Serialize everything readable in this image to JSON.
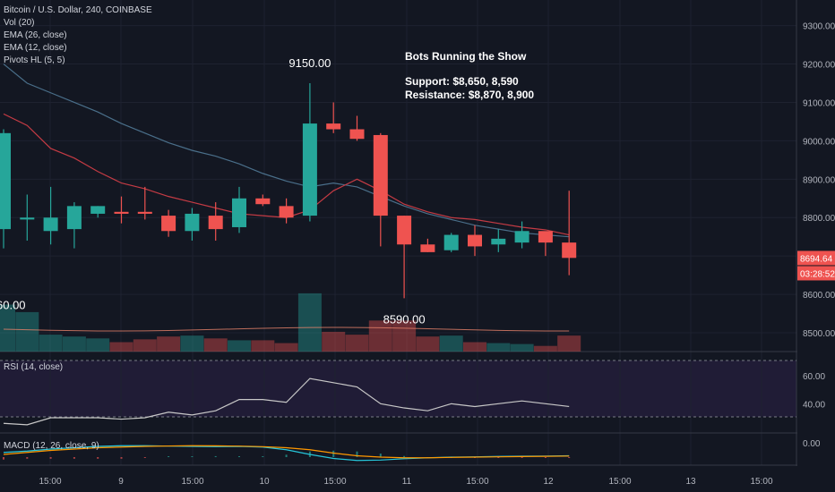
{
  "header": {
    "symbol": "Bitcoin / U.S. Dollar, 240, COINBASE",
    "indicators": [
      "Vol (20)",
      "EMA (26, close)",
      "EMA (12, close)",
      "Pivots HL (5, 5)"
    ]
  },
  "annotation": {
    "title": "Bots Running the Show",
    "support": "Support: $8,650, 8,590",
    "resistance": "Resistance: $8,870, 8,900"
  },
  "pivots": {
    "high": "9150.00",
    "low": "8590.00",
    "left_low_partial": "60.00"
  },
  "badges": {
    "price": "8694.64",
    "countdown": "03:28:52",
    "price_color": "#ef5350"
  },
  "colors": {
    "background": "#131722",
    "up": "#26a69a",
    "down": "#ef5350",
    "ema26": "#4a6f8a",
    "ema12": "#c43b44",
    "rsi_line": "#c8c8c8",
    "rsi_band": "#2a1f45",
    "macd_line": "#26c6da",
    "signal_line": "#ff9800"
  },
  "chart_data": {
    "type": "candlestick",
    "price_axis": {
      "ticks": [
        "9300.00",
        "9200.00",
        "9100.00",
        "9000.00",
        "8900.00",
        "8800.00",
        "8700.00",
        "8600.00",
        "8500.00"
      ]
    },
    "time_axis": {
      "labels": [
        "15:00",
        "9",
        "15:00",
        "10",
        "15:00",
        "11",
        "15:00",
        "12",
        "15:00",
        "13",
        "15:00"
      ]
    },
    "candles": [
      {
        "o": 8770,
        "h": 9030,
        "l": 8720,
        "c": 9020
      },
      {
        "o": 8795,
        "h": 8860,
        "l": 8740,
        "c": 8800
      },
      {
        "o": 8765,
        "h": 8880,
        "l": 8730,
        "c": 8800
      },
      {
        "o": 8770,
        "h": 8840,
        "l": 8720,
        "c": 8830
      },
      {
        "o": 8810,
        "h": 8830,
        "l": 8800,
        "c": 8830
      },
      {
        "o": 8815,
        "h": 8855,
        "l": 8785,
        "c": 8810
      },
      {
        "o": 8815,
        "h": 8880,
        "l": 8795,
        "c": 8810
      },
      {
        "o": 8805,
        "h": 8820,
        "l": 8750,
        "c": 8765
      },
      {
        "o": 8765,
        "h": 8825,
        "l": 8740,
        "c": 8810
      },
      {
        "o": 8805,
        "h": 8840,
        "l": 8740,
        "c": 8770
      },
      {
        "o": 8775,
        "h": 8880,
        "l": 8760,
        "c": 8850
      },
      {
        "o": 8850,
        "h": 8860,
        "l": 8830,
        "c": 8835
      },
      {
        "o": 8830,
        "h": 8850,
        "l": 8785,
        "c": 8800
      },
      {
        "o": 8805,
        "h": 9150,
        "l": 8790,
        "c": 9045
      },
      {
        "o": 9045,
        "h": 9100,
        "l": 9020,
        "c": 9030
      },
      {
        "o": 9030,
        "h": 9065,
        "l": 9000,
        "c": 9005
      },
      {
        "o": 9015,
        "h": 9020,
        "l": 8725,
        "c": 8805
      },
      {
        "o": 8805,
        "h": 8805,
        "l": 8590,
        "c": 8730
      },
      {
        "o": 8730,
        "h": 8745,
        "l": 8710,
        "c": 8710
      },
      {
        "o": 8715,
        "h": 8760,
        "l": 8710,
        "c": 8755
      },
      {
        "o": 8755,
        "h": 8780,
        "l": 8700,
        "c": 8725
      },
      {
        "o": 8730,
        "h": 8770,
        "l": 8710,
        "c": 8745
      },
      {
        "o": 8735,
        "h": 8790,
        "l": 8720,
        "c": 8765
      },
      {
        "o": 8765,
        "h": 8760,
        "l": 8700,
        "c": 8735
      },
      {
        "o": 8735,
        "h": 8870,
        "l": 8650,
        "c": 8695
      }
    ],
    "ema26": [
      9200,
      9150,
      9125,
      9100,
      9075,
      9045,
      9020,
      8995,
      8975,
      8960,
      8940,
      8915,
      8895,
      8880,
      8890,
      8880,
      8855,
      8830,
      8810,
      8795,
      8780,
      8770,
      8760,
      8755,
      8750
    ],
    "ema12": [
      9070,
      9040,
      8980,
      8955,
      8920,
      8890,
      8875,
      8855,
      8840,
      8825,
      8810,
      8805,
      8800,
      8820,
      8870,
      8900,
      8870,
      8835,
      8815,
      8800,
      8795,
      8785,
      8775,
      8768,
      8755
    ],
    "volume_relative": [
      0.5,
      0.42,
      0.18,
      0.16,
      0.14,
      0.1,
      0.13,
      0.16,
      0.17,
      0.14,
      0.12,
      0.12,
      0.09,
      0.62,
      0.21,
      0.18,
      0.33,
      0.33,
      0.16,
      0.17,
      0.1,
      0.09,
      0.08,
      0.06,
      0.17
    ],
    "rsi": {
      "label": "RSI (14, close)",
      "ticks": [
        "60.00",
        "40.00"
      ],
      "values": [
        26,
        25,
        30,
        30,
        30,
        29,
        30,
        34,
        32,
        35,
        43,
        43,
        41,
        58,
        55,
        52,
        40,
        37,
        35,
        40,
        38,
        40,
        42,
        40,
        38
      ]
    },
    "macd": {
      "label": "MACD (12, 26, close, 9)",
      "ticks": [
        "0.00"
      ],
      "macd_values": [
        -0.35,
        -0.45,
        -0.6,
        -0.7,
        -0.8,
        -0.85,
        -0.85,
        -0.82,
        -0.8,
        -0.78,
        -0.8,
        -0.75,
        -0.55,
        -0.2,
        0.1,
        0.25,
        0.22,
        0.12,
        0.05,
        0.0,
        -0.02,
        -0.05,
        -0.07,
        -0.08,
        -0.1
      ],
      "signal_values": [
        -0.2,
        -0.35,
        -0.5,
        -0.6,
        -0.7,
        -0.75,
        -0.8,
        -0.83,
        -0.85,
        -0.84,
        -0.82,
        -0.78,
        -0.7,
        -0.55,
        -0.3,
        -0.1,
        0.0,
        0.05,
        0.05,
        0.02,
        0.0,
        -0.02,
        -0.04,
        -0.06,
        -0.08
      ]
    }
  }
}
